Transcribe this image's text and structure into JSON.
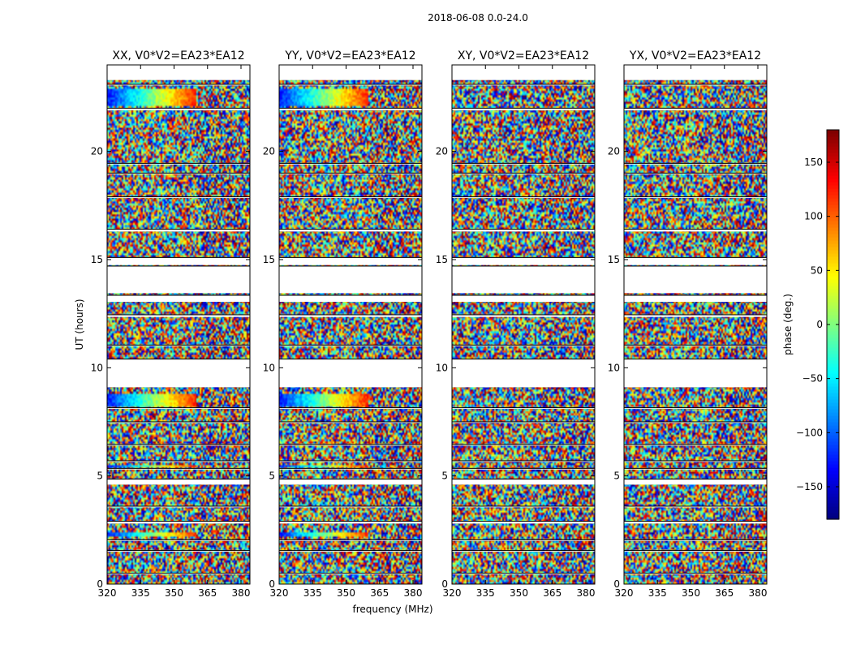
{
  "chart_data": {
    "type": "heatmap",
    "suptitle": "2018-06-08 0.0-24.0",
    "xlabel": "frequency (MHz)",
    "ylabel": "UT (hours)",
    "xlim": [
      320,
      384
    ],
    "ylim": [
      0,
      24
    ],
    "xticks": [
      "320",
      "335",
      "350",
      "365",
      "380"
    ],
    "xtick_values": [
      320,
      335,
      350,
      365,
      380
    ],
    "yticks": [
      "0",
      "5",
      "10",
      "15",
      "20"
    ],
    "ytick_values": [
      0,
      5,
      10,
      15,
      20
    ],
    "panels": [
      {
        "title": "XX, V0*V2=EA23*EA12"
      },
      {
        "title": "YY, V0*V2=EA23*EA12"
      },
      {
        "title": "XY, V0*V2=EA23*EA12"
      },
      {
        "title": "YX, V0*V2=EA23*EA12"
      }
    ],
    "colorbar": {
      "label": "phase (deg.)",
      "range": [
        -180,
        180
      ],
      "ticks": [
        "150",
        "100",
        "50",
        "0",
        "−50",
        "−100",
        "−150"
      ],
      "tick_values": [
        150,
        100,
        50,
        0,
        -50,
        -100,
        -150
      ],
      "colormap": "jet"
    },
    "flagged_ut_ranges": [
      [
        0.45,
        0.5
      ],
      [
        1.5,
        1.55
      ],
      [
        2.0,
        2.05
      ],
      [
        2.8,
        2.9
      ],
      [
        3.55,
        3.6
      ],
      [
        4.6,
        4.85
      ],
      [
        5.3,
        5.35
      ],
      [
        5.65,
        5.7
      ],
      [
        6.4,
        6.45
      ],
      [
        7.45,
        7.5
      ],
      [
        8.1,
        8.15
      ],
      [
        9.1,
        10.4
      ],
      [
        11.0,
        11.05
      ],
      [
        12.35,
        12.45
      ],
      [
        13.05,
        13.35
      ],
      [
        13.45,
        14.7
      ],
      [
        14.75,
        15.1
      ],
      [
        16.3,
        16.4
      ],
      [
        17.85,
        17.9
      ],
      [
        18.95,
        19.0
      ],
      [
        19.4,
        19.45
      ],
      [
        21.9,
        22.0
      ],
      [
        23.05,
        23.1
      ],
      [
        23.3,
        24.0
      ]
    ]
  }
}
